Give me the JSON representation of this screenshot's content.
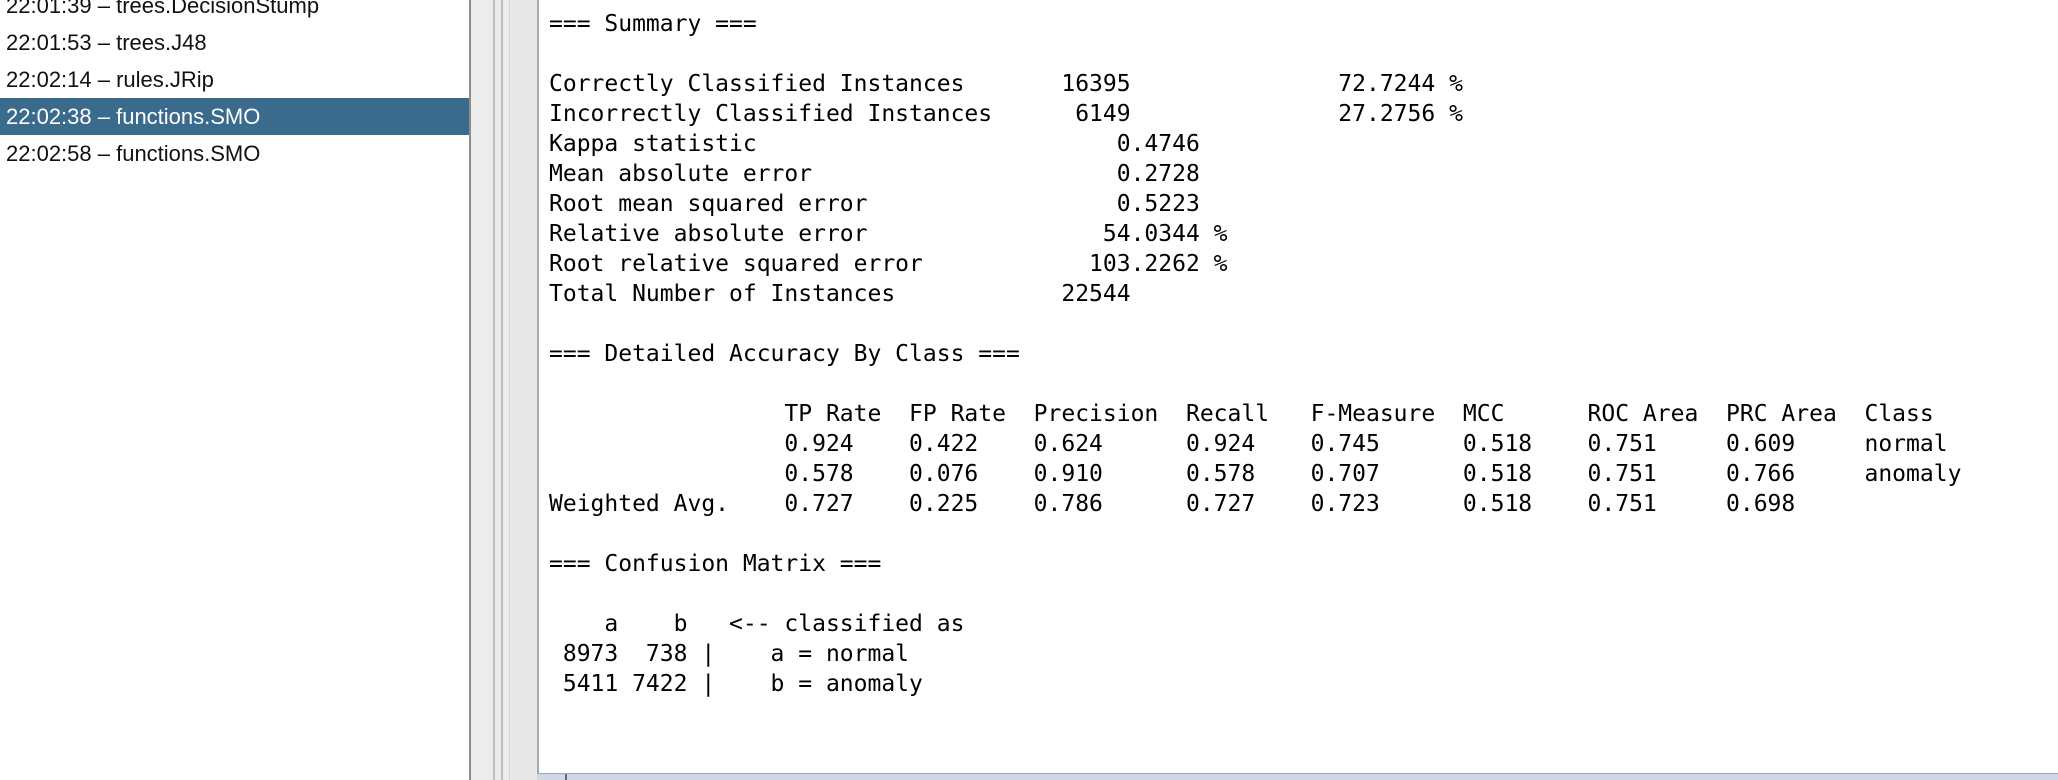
{
  "result_list": {
    "items": [
      {
        "label": "22:01:39 – trees.DecisionStump",
        "selected": false
      },
      {
        "label": "22:01:53 – trees.J48",
        "selected": false
      },
      {
        "label": "22:02:14 – rules.JRip",
        "selected": false
      },
      {
        "label": "22:02:38 – functions.SMO",
        "selected": true
      },
      {
        "label": "22:02:58 – functions.SMO",
        "selected": false
      }
    ]
  },
  "output": {
    "lines": [
      "=== Summary ===",
      "",
      "Correctly Classified Instances       16395               72.7244 %",
      "Incorrectly Classified Instances      6149               27.2756 %",
      "Kappa statistic                          0.4746",
      "Mean absolute error                      0.2728",
      "Root mean squared error                  0.5223",
      "Relative absolute error                 54.0344 %",
      "Root relative squared error            103.2262 %",
      "Total Number of Instances            22544",
      "",
      "=== Detailed Accuracy By Class ===",
      "",
      "                 TP Rate  FP Rate  Precision  Recall   F-Measure  MCC      ROC Area  PRC Area  Class",
      "                 0.924    0.422    0.624      0.924    0.745      0.518    0.751     0.609     normal",
      "                 0.578    0.076    0.910      0.578    0.707      0.518    0.751     0.766     anomaly",
      "Weighted Avg.    0.727    0.225    0.786      0.727    0.723      0.518    0.751     0.698",
      "",
      "=== Confusion Matrix ===",
      "",
      "    a    b   <-- classified as",
      " 8973  738 |    a = normal",
      " 5411 7422 |    b = anomaly"
    ]
  },
  "colors": {
    "selection_background": "#3a6a8c",
    "selection_text": "#ffffff"
  }
}
